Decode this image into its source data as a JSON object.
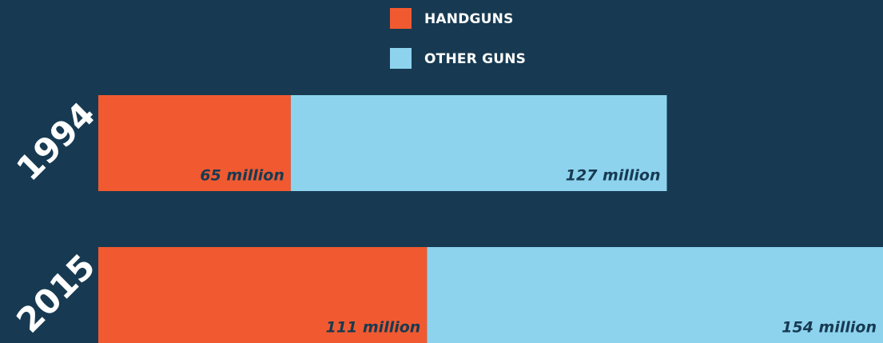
{
  "chart_data": {
    "type": "bar",
    "orientation": "horizontal",
    "stacked": true,
    "categories": [
      "1994",
      "2015"
    ],
    "series": [
      {
        "name": "HANDGUNS",
        "color": "#f15a30",
        "values": [
          65,
          111
        ],
        "value_labels": [
          "65 million",
          "111 million"
        ]
      },
      {
        "name": "OTHER GUNS",
        "color": "#8dd3ee",
        "values": [
          127,
          154
        ],
        "value_labels": [
          "127 million",
          "154 million"
        ]
      }
    ]
  }
}
